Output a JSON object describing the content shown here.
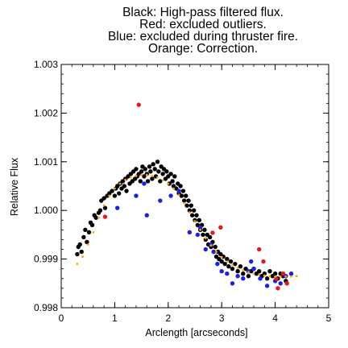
{
  "chart_data": {
    "type": "scatter",
    "title_lines": [
      "Black: High-pass filtered flux.",
      "Red: excluded outliers.",
      "Blue: excluded during thruster fire.",
      "Orange: Correction."
    ],
    "xlabel": "Arclength [arcseconds]",
    "ylabel": "Relative Flux",
    "xlim": [
      0,
      5
    ],
    "ylim": [
      0.998,
      1.003
    ],
    "x_ticks": [
      0,
      1,
      2,
      3,
      4,
      5
    ],
    "y_ticks": [
      0.998,
      0.999,
      1.0,
      1.001,
      1.002,
      1.003
    ],
    "x_tick_labels": [
      "0",
      "1",
      "2",
      "3",
      "4",
      "5"
    ],
    "y_tick_labels": [
      "0.998",
      "0.999",
      "1.000",
      "1.001",
      "1.002",
      "1.003"
    ],
    "grid": false,
    "colors": {
      "black": "#000000",
      "red": "#e31a1c",
      "blue": "#1f1fdd",
      "orange": "#ffa500"
    },
    "series": [
      {
        "color": "black",
        "points": [
          [
            0.3,
            0.9991
          ],
          [
            0.32,
            0.99925
          ],
          [
            0.35,
            0.9993
          ],
          [
            0.38,
            0.99915
          ],
          [
            0.42,
            0.99945
          ],
          [
            0.45,
            0.9996
          ],
          [
            0.48,
            0.99935
          ],
          [
            0.52,
            0.99955
          ],
          [
            0.55,
            0.99975
          ],
          [
            0.58,
            0.9997
          ],
          [
            0.62,
            0.9999
          ],
          [
            0.65,
            0.99985
          ],
          [
            0.7,
            0.99995
          ],
          [
            0.73,
            1.0
          ],
          [
            0.75,
            1.0002
          ],
          [
            0.8,
            1.00025
          ],
          [
            0.82,
            1.00005
          ],
          [
            0.86,
            1.0003
          ],
          [
            0.9,
            1.00035
          ],
          [
            0.95,
            1.0004
          ],
          [
            1.0,
            1.0003
          ],
          [
            1.02,
            1.00045
          ],
          [
            1.05,
            1.0005
          ],
          [
            1.08,
            1.00035
          ],
          [
            1.1,
            1.00055
          ],
          [
            1.13,
            1.00045
          ],
          [
            1.15,
            1.0006
          ],
          [
            1.18,
            1.0005
          ],
          [
            1.2,
            1.00065
          ],
          [
            1.22,
            1.0004
          ],
          [
            1.25,
            1.0007
          ],
          [
            1.28,
            1.00055
          ],
          [
            1.3,
            1.00075
          ],
          [
            1.33,
            1.0006
          ],
          [
            1.35,
            1.0008
          ],
          [
            1.38,
            1.00065
          ],
          [
            1.4,
            1.00085
          ],
          [
            1.42,
            1.0007
          ],
          [
            1.45,
            1.00075
          ],
          [
            1.48,
            1.0006
          ],
          [
            1.5,
            1.0008
          ],
          [
            1.52,
            1.0009
          ],
          [
            1.55,
            1.0007
          ],
          [
            1.57,
            1.00085
          ],
          [
            1.6,
            1.00075
          ],
          [
            1.62,
            1.0006
          ],
          [
            1.65,
            1.0009
          ],
          [
            1.67,
            1.0008
          ],
          [
            1.7,
            1.00065
          ],
          [
            1.72,
            1.00095
          ],
          [
            1.75,
            1.00085
          ],
          [
            1.77,
            1.0007
          ],
          [
            1.8,
            1.001
          ],
          [
            1.82,
            1.0008
          ],
          [
            1.85,
            1.0006
          ],
          [
            1.87,
            1.0009
          ],
          [
            1.9,
            1.00075
          ],
          [
            1.92,
            1.00085
          ],
          [
            1.95,
            1.00065
          ],
          [
            1.97,
            1.0008
          ],
          [
            2.0,
            1.0007
          ],
          [
            2.02,
            1.00055
          ],
          [
            2.05,
            1.00075
          ],
          [
            2.08,
            1.0006
          ],
          [
            2.1,
            1.0005
          ],
          [
            2.12,
            1.0007
          ],
          [
            2.15,
            1.00045
          ],
          [
            2.18,
            1.00055
          ],
          [
            2.2,
            1.00035
          ],
          [
            2.23,
            1.0005
          ],
          [
            2.25,
            1.0003
          ],
          [
            2.28,
            1.0004
          ],
          [
            2.3,
            1.0002
          ],
          [
            2.33,
            1.0003
          ],
          [
            2.35,
            1.0001
          ],
          [
            2.38,
            1.0002
          ],
          [
            2.4,
            1.0
          ],
          [
            2.43,
            1.0001
          ],
          [
            2.45,
            0.9999
          ],
          [
            2.48,
            1.0
          ],
          [
            2.5,
            0.9998
          ],
          [
            2.53,
            0.9999
          ],
          [
            2.55,
            0.9997
          ],
          [
            2.58,
            0.9998
          ],
          [
            2.6,
            0.9996
          ],
          [
            2.63,
            0.9997
          ],
          [
            2.65,
            0.9995
          ],
          [
            2.68,
            0.9996
          ],
          [
            2.7,
            0.9994
          ],
          [
            2.73,
            0.9995
          ],
          [
            2.75,
            0.9993
          ],
          [
            2.78,
            0.99945
          ],
          [
            2.8,
            0.99925
          ],
          [
            2.83,
            0.99935
          ],
          [
            2.85,
            0.99915
          ],
          [
            2.88,
            0.99925
          ],
          [
            2.9,
            0.99905
          ],
          [
            2.93,
            0.99915
          ],
          [
            2.95,
            0.999
          ],
          [
            2.98,
            0.9991
          ],
          [
            3.0,
            0.99895
          ],
          [
            3.03,
            0.99905
          ],
          [
            3.06,
            0.9989
          ],
          [
            3.1,
            0.999
          ],
          [
            3.13,
            0.99885
          ],
          [
            3.17,
            0.99895
          ],
          [
            3.2,
            0.9988
          ],
          [
            3.25,
            0.9989
          ],
          [
            3.3,
            0.99875
          ],
          [
            3.35,
            0.99885
          ],
          [
            3.4,
            0.9987
          ],
          [
            3.45,
            0.9988
          ],
          [
            3.5,
            0.99865
          ],
          [
            3.55,
            0.99875
          ],
          [
            3.6,
            0.9988
          ],
          [
            3.65,
            0.9987
          ],
          [
            3.7,
            0.99875
          ],
          [
            3.75,
            0.99865
          ],
          [
            3.8,
            0.9987
          ],
          [
            3.85,
            0.9986
          ],
          [
            3.9,
            0.99875
          ],
          [
            3.95,
            0.99865
          ],
          [
            4.0,
            0.9987
          ],
          [
            4.05,
            0.9986
          ],
          [
            4.1,
            0.9987
          ],
          [
            4.15,
            0.99865
          ],
          [
            4.2,
            0.99855
          ]
        ]
      },
      {
        "color": "red",
        "points": [
          [
            1.45,
            1.00217
          ],
          [
            0.82,
            0.99987
          ],
          [
            2.83,
            0.99954
          ],
          [
            2.98,
            0.99965
          ],
          [
            3.7,
            0.9992
          ],
          [
            3.78,
            0.99895
          ],
          [
            4.02,
            0.9986
          ],
          [
            4.15,
            0.9987
          ],
          [
            4.22,
            0.9985
          ],
          [
            4.05,
            0.9984
          ]
        ]
      },
      {
        "color": "blue",
        "points": [
          [
            1.05,
            1.00005
          ],
          [
            1.4,
            1.0003
          ],
          [
            1.55,
            1.00055
          ],
          [
            1.6,
            0.9999
          ],
          [
            1.85,
            1.0002
          ],
          [
            2.05,
            1.0003
          ],
          [
            2.2,
            1.0004
          ],
          [
            2.4,
            0.99955
          ],
          [
            2.55,
            0.9995
          ],
          [
            2.6,
            0.99965
          ],
          [
            2.7,
            0.9992
          ],
          [
            2.8,
            0.9993
          ],
          [
            2.85,
            0.99915
          ],
          [
            2.92,
            0.9989
          ],
          [
            3.0,
            0.99875
          ],
          [
            3.1,
            0.9987
          ],
          [
            3.2,
            0.9985
          ],
          [
            3.3,
            0.99865
          ],
          [
            3.4,
            0.9986
          ],
          [
            3.5,
            0.99875
          ],
          [
            3.55,
            0.99895
          ],
          [
            3.6,
            0.9988
          ],
          [
            3.72,
            0.9986
          ],
          [
            3.85,
            0.99845
          ],
          [
            4.0,
            0.99855
          ],
          [
            4.1,
            0.9985
          ],
          [
            4.2,
            0.99865
          ],
          [
            4.3,
            0.9987
          ]
        ]
      },
      {
        "color": "orange",
        "points": [
          [
            0.3,
            0.9989
          ],
          [
            0.4,
            0.99905
          ],
          [
            0.5,
            0.9993
          ],
          [
            0.6,
            0.99955
          ],
          [
            0.7,
            0.99985
          ],
          [
            0.8,
            1.0001
          ],
          [
            0.9,
            1.0003
          ],
          [
            1.0,
            1.00045
          ],
          [
            1.1,
            1.00055
          ],
          [
            1.2,
            1.00063
          ],
          [
            1.3,
            1.00068
          ],
          [
            1.4,
            1.00071
          ],
          [
            1.5,
            1.00073
          ],
          [
            1.6,
            1.00073
          ],
          [
            1.7,
            1.00071
          ],
          [
            1.8,
            1.00068
          ],
          [
            1.9,
            1.00062
          ],
          [
            2.0,
            1.00055
          ],
          [
            2.1,
            1.00045
          ],
          [
            2.2,
            1.00032
          ],
          [
            2.3,
            1.00015
          ],
          [
            2.4,
            0.99996
          ],
          [
            2.5,
            0.99978
          ],
          [
            2.6,
            0.9996
          ],
          [
            2.7,
            0.99943
          ],
          [
            2.8,
            0.99928
          ],
          [
            2.9,
            0.99915
          ],
          [
            3.0,
            0.99904
          ],
          [
            3.1,
            0.99895
          ],
          [
            3.2,
            0.99888
          ],
          [
            3.3,
            0.99882
          ],
          [
            3.4,
            0.99877
          ],
          [
            3.5,
            0.99873
          ],
          [
            3.6,
            0.9987
          ],
          [
            3.7,
            0.99868
          ],
          [
            3.8,
            0.99866
          ],
          [
            3.9,
            0.99865
          ],
          [
            4.0,
            0.99864
          ],
          [
            4.1,
            0.99864
          ],
          [
            4.2,
            0.99864
          ],
          [
            4.3,
            0.99864
          ],
          [
            4.4,
            0.99865
          ]
        ]
      }
    ]
  }
}
